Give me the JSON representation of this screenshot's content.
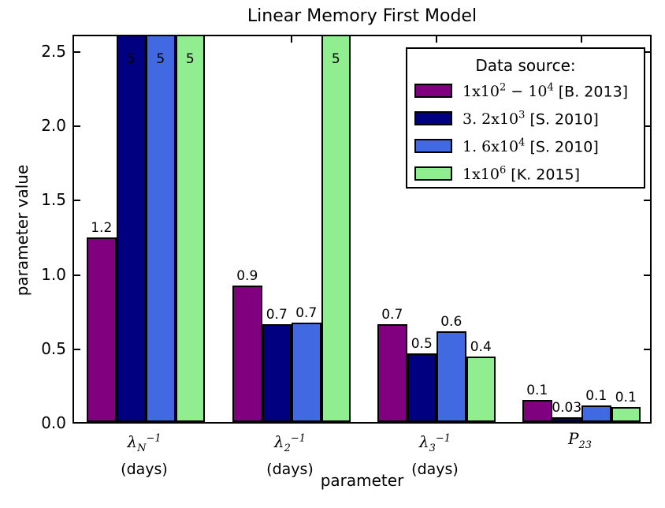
{
  "title": "Linear Memory First Model",
  "axes": {
    "xlabel": "parameter",
    "ylabel": "parameter value",
    "ytick_labels": [
      "0.0",
      "0.5",
      "1.0",
      "1.5",
      "2.0",
      "2.5"
    ],
    "ytick_values": [
      0.0,
      0.5,
      1.0,
      1.5,
      2.0,
      2.5
    ],
    "ylim": [
      0,
      2.62
    ],
    "grid": false
  },
  "legend": {
    "title": "Data source:",
    "position": "upper right",
    "entries": [
      {
        "math": "1x10^{2} − 10^{4}",
        "ref": " [B. 2013]",
        "color": "#800080"
      },
      {
        "math": "3. 2x10^{3}",
        "ref": " [S. 2010]",
        "color": "#000080"
      },
      {
        "math": "1. 6x10^{4}",
        "ref": " [S. 2010]",
        "color": "#4169E1"
      },
      {
        "math": "1x10^{6}",
        "ref": " [K. 2015]",
        "color": "#90EE90"
      }
    ]
  },
  "chart_data": {
    "type": "bar",
    "title": "Linear Memory First Model",
    "xlabel": "parameter",
    "ylabel": "parameter value",
    "ylim": [
      0,
      2.62
    ],
    "grid": false,
    "legend_position": "upper right",
    "categories": [
      {
        "math": "λ_{N}^{−1}",
        "unit": "(days)"
      },
      {
        "math": "λ_{2}^{−1}",
        "unit": "(days)"
      },
      {
        "math": "λ_{3}^{−1}",
        "unit": "(days)"
      },
      {
        "math": "P_{23}",
        "unit": ""
      }
    ],
    "series": [
      {
        "name": "1x10^2 − 10^4 [B. 2013]",
        "color": "#800080",
        "values": [
          1.24,
          0.92,
          0.66,
          0.15
        ],
        "labels": [
          "1.2",
          "0.9",
          "0.7",
          "0.1"
        ]
      },
      {
        "name": "3.2x10^3 [S. 2010]",
        "color": "#000080",
        "values": [
          5,
          0.66,
          0.46,
          0.03
        ],
        "labels": [
          "5",
          "0.7",
          "0.5",
          "0.03"
        ]
      },
      {
        "name": "1.6x10^4 [S. 2010]",
        "color": "#4169E1",
        "values": [
          5,
          0.67,
          0.61,
          0.11
        ],
        "labels": [
          "5",
          "0.7",
          "0.6",
          "0.1"
        ]
      },
      {
        "name": "1x10^6 [K. 2015]",
        "color": "#90EE90",
        "values": [
          5,
          5,
          0.44,
          0.1
        ],
        "labels": [
          "5",
          "5",
          "0.4",
          "0.1"
        ]
      }
    ],
    "clipped_bar_note": "values of 5 exceed ylim; bars clipped at axes top with label drawn inside bar"
  }
}
